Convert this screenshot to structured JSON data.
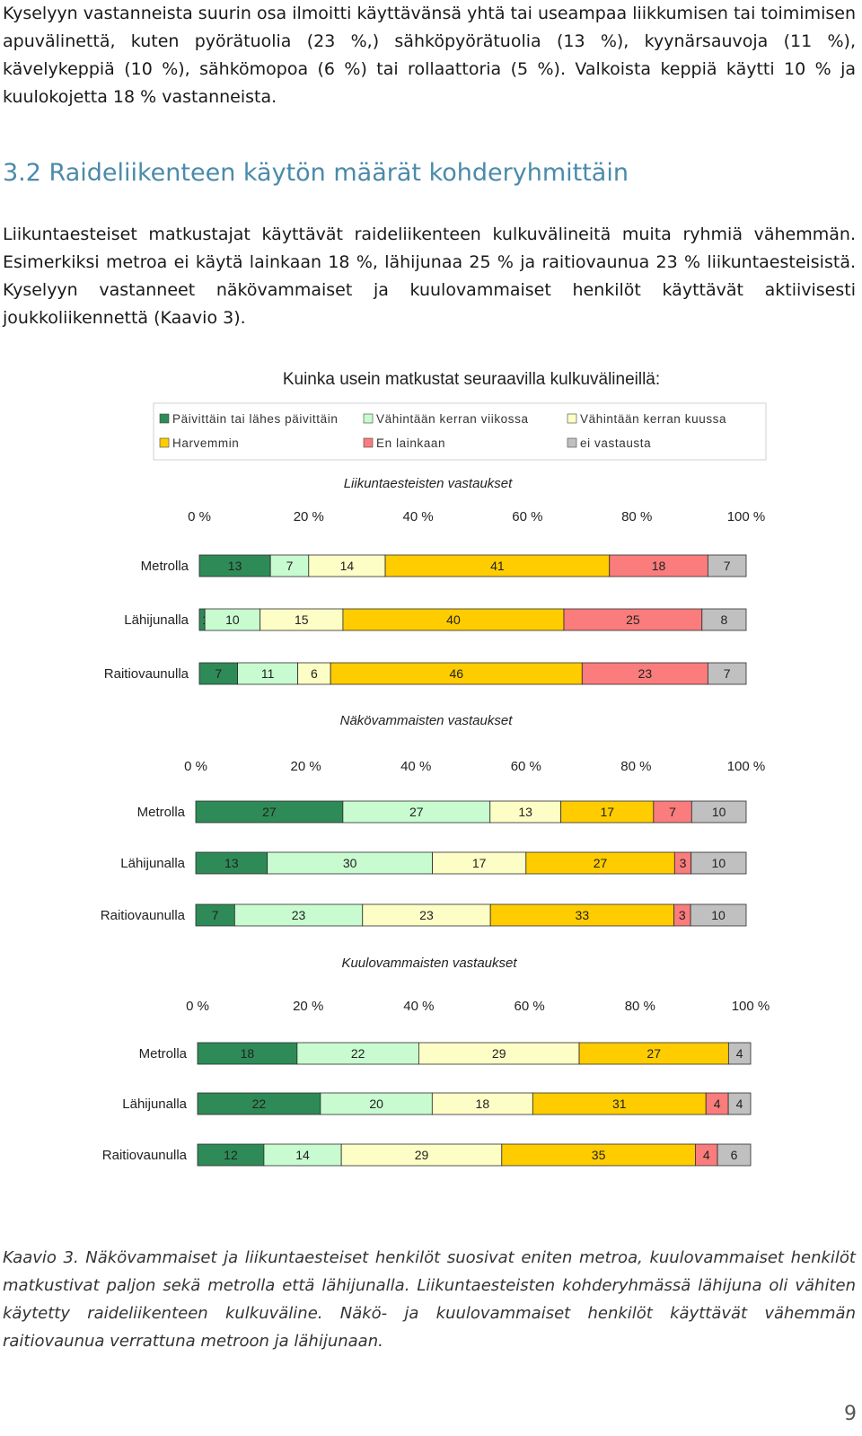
{
  "intro_paragraph": "Kyselyyn vastanneista suurin osa ilmoitti käyttävänsä yhtä tai useampaa liikkumisen tai toimimisen apuvälinettä, kuten pyörätuolia (23 %,) sähköpyörätuolia (13 %), kyynärsauvoja (11 %), kävelykeppiä (10 %), sähkömopoa (6 %) tai rollaattoria (5 %). Valkoista keppiä käytti 10 % ja kuulokojetta 18 % vastanneista.",
  "section_heading": "3.2 Raideliikenteen käytön määrät kohderyhmittäin",
  "body_paragraph": "Liikuntaesteiset matkustajat käyttävät raideliikenteen kulkuvälineitä muita ryhmiä vähemmän. Esimerkiksi metroa ei käytä lainkaan 18 %, lähijunaa 25 % ja raitiovaunua 23 % liikuntaesteisistä. Kyselyyn vastanneet näkövammaiset ja kuulovammaiset henkilöt käyttävät aktiivisesti joukkoliikennettä (Kaavio 3).",
  "caption": "Kaavio 3. Näkövammaiset ja liikuntaesteiset henkilöt suosivat eniten metroa, kuulovammaiset henkilöt matkustivat paljon sekä metrolla että lähijunalla. Liikuntaesteisten kohderyhmässä lähijuna oli vähiten käytetty raideliikenteen kulkuväline. Näkö- ja kuulovammaiset henkilöt käyttävät vähemmän raitiovaunua verrattuna metroon ja lähijunaan.",
  "page_number": "9",
  "chart_data": {
    "type": "bar",
    "orientation": "horizontal-stacked-100",
    "title": "Kuinka usein matkustat seuraavilla kulkuvälineillä:",
    "legend": [
      {
        "label": "Päivittäin tai lähes päivittäin",
        "color": "#2e8b57"
      },
      {
        "label": "Vähintään kerran viikossa",
        "color": "#c8fcd0"
      },
      {
        "label": "Vähintään kerran kuussa",
        "color": "#fdfdc6"
      },
      {
        "label": "Harvemmin",
        "color": "#ffcc00"
      },
      {
        "label": "En lainkaan",
        "color": "#fa7c7c"
      },
      {
        "label": "ei vastausta",
        "color": "#c0c0c0"
      }
    ],
    "xlim": [
      0,
      100
    ],
    "tick_labels": [
      "0 %",
      "20 %",
      "40 %",
      "60 %",
      "80 %",
      "100 %"
    ],
    "panels": [
      {
        "title": "Liikuntaesteisten vastaukset",
        "categories": [
          "Metrolla",
          "Lähijunalla",
          "Raitiovaunulla"
        ],
        "values": [
          [
            13,
            7,
            14,
            41,
            18,
            7
          ],
          [
            1,
            10,
            15,
            40,
            25,
            8
          ],
          [
            7,
            11,
            6,
            46,
            23,
            7
          ]
        ]
      },
      {
        "title": "Näkövammaisten vastaukset",
        "categories": [
          "Metrolla",
          "Lähijunalla",
          "Raitiovaunulla"
        ],
        "values": [
          [
            27,
            27,
            13,
            17,
            7,
            10
          ],
          [
            13,
            30,
            17,
            27,
            3,
            10
          ],
          [
            7,
            23,
            23,
            33,
            3,
            10
          ]
        ]
      },
      {
        "title": "Kuulovammaisten vastaukset",
        "categories": [
          "Metrolla",
          "Lähijunalla",
          "Raitiovaunulla"
        ],
        "values": [
          [
            18,
            22,
            29,
            27,
            0,
            4
          ],
          [
            22,
            20,
            18,
            31,
            4,
            4
          ],
          [
            12,
            14,
            29,
            35,
            4,
            6
          ]
        ]
      }
    ]
  }
}
